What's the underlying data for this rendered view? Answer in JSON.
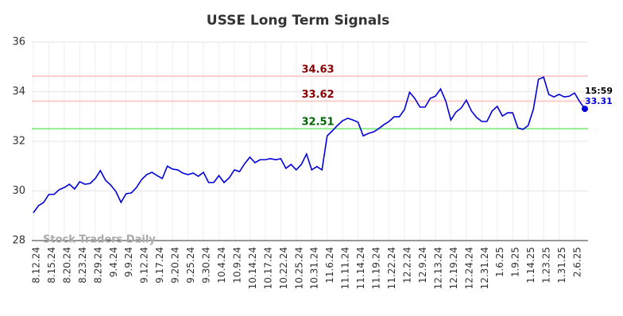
{
  "chart_data": {
    "type": "line",
    "title": "USSE Long Term Signals",
    "watermark": "Stock Traders Daily",
    "categories": [
      "8.12.24",
      null,
      null,
      "8.15.24",
      null,
      null,
      "8.20.24",
      null,
      null,
      "8.23.24",
      null,
      null,
      "8.29.24",
      null,
      null,
      "9.4.24",
      null,
      null,
      "9.9.24",
      null,
      null,
      "9.12.24",
      null,
      null,
      "9.17.24",
      null,
      null,
      "9.20.24",
      null,
      null,
      "9.25.24",
      null,
      null,
      "9.30.24",
      null,
      null,
      "10.4.24",
      null,
      null,
      "10.9.24",
      null,
      null,
      "10.14.24",
      null,
      null,
      "10.17.24",
      null,
      null,
      "10.22.24",
      null,
      null,
      "10.25.24",
      null,
      null,
      "10.31.24",
      null,
      null,
      "11.6.24",
      null,
      null,
      "11.11.24",
      null,
      null,
      "11.14.24",
      null,
      null,
      "11.19.24",
      null,
      null,
      "11.22.24",
      null,
      null,
      "12.2.24",
      null,
      null,
      "12.9.24",
      null,
      null,
      "12.13.24",
      null,
      null,
      "12.19.24",
      null,
      null,
      "12.24.24",
      null,
      null,
      "12.31.24",
      null,
      null,
      "1.6.25",
      null,
      null,
      "1.9.25",
      null,
      null,
      "1.14.25",
      null,
      null,
      "1.23.25",
      null,
      null,
      "1.31.25",
      null,
      null,
      "2.6.25",
      null,
      null
    ],
    "series": [
      {
        "name": "USSE",
        "color": "#0000dd",
        "values": [
          29.12,
          29.41,
          29.54,
          29.86,
          29.86,
          30.05,
          30.14,
          30.27,
          30.08,
          30.37,
          30.27,
          30.3,
          30.5,
          30.82,
          30.43,
          30.24,
          29.98,
          29.54,
          29.89,
          29.92,
          30.14,
          30.46,
          30.66,
          30.75,
          30.62,
          30.5,
          31.0,
          30.88,
          30.85,
          30.72,
          30.66,
          30.72,
          30.59,
          30.75,
          30.34,
          30.34,
          30.62,
          30.34,
          30.53,
          30.85,
          30.78,
          31.1,
          31.36,
          31.14,
          31.26,
          31.26,
          31.3,
          31.26,
          31.3,
          30.91,
          31.07,
          30.85,
          31.07,
          31.49,
          30.85,
          30.98,
          30.85,
          32.22,
          32.42,
          32.64,
          32.83,
          32.93,
          32.86,
          32.77,
          32.22,
          32.32,
          32.38,
          32.51,
          32.67,
          32.8,
          32.99,
          32.99,
          33.28,
          33.98,
          33.73,
          33.38,
          33.38,
          33.73,
          33.82,
          34.11,
          33.63,
          32.86,
          33.18,
          33.34,
          33.66,
          33.22,
          32.96,
          32.8,
          32.8,
          33.22,
          33.41,
          33.02,
          33.15,
          33.15,
          32.54,
          32.48,
          32.64,
          33.28,
          34.5,
          34.59,
          33.89,
          33.79,
          33.89,
          33.79,
          33.82,
          33.95,
          33.6,
          33.31
        ]
      }
    ],
    "hlines": [
      {
        "value": 34.63,
        "color": "#ffcccc",
        "label_color": "#8b0000"
      },
      {
        "value": 33.62,
        "color": "#ffcccc",
        "label_color": "#8b0000"
      },
      {
        "value": 32.51,
        "color": "#90ee90",
        "label_color": "#006400"
      }
    ],
    "last_label": {
      "time": "15:59",
      "value": 33.31
    },
    "ylim": [
      28,
      36
    ],
    "yticks": [
      28,
      30,
      32,
      34,
      36
    ],
    "grid": true
  }
}
